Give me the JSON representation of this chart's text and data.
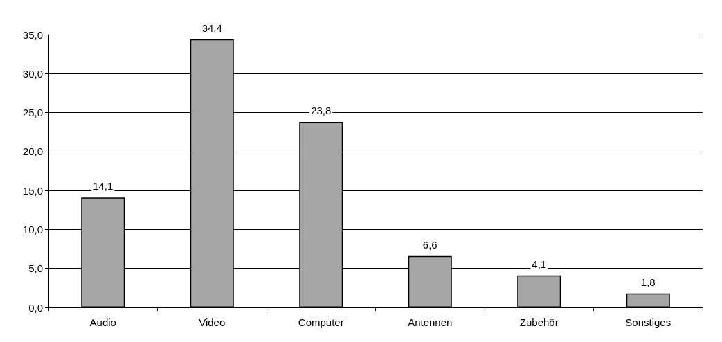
{
  "chart_data": {
    "type": "bar",
    "categories": [
      "Audio",
      "Video",
      "Computer",
      "Antennen",
      "Zubehör",
      "Sonstiges"
    ],
    "values": [
      14.1,
      34.4,
      23.8,
      6.6,
      4.1,
      1.8
    ],
    "value_labels": [
      "14,1",
      "34,4",
      "23,8",
      "6,6",
      "4,1",
      "1,8"
    ],
    "color": "#a6a6a6",
    "ylim": [
      0,
      35
    ],
    "yticks": [
      {
        "value": 0,
        "label": "0,0"
      },
      {
        "value": 5,
        "label": "5,0"
      },
      {
        "value": 10,
        "label": "10,0"
      },
      {
        "value": 15,
        "label": "15,0"
      },
      {
        "value": 20,
        "label": "20,0"
      },
      {
        "value": 25,
        "label": "25,0"
      },
      {
        "value": 30,
        "label": "30,0"
      },
      {
        "value": 35,
        "label": "35,0"
      }
    ],
    "grid": "y"
  }
}
